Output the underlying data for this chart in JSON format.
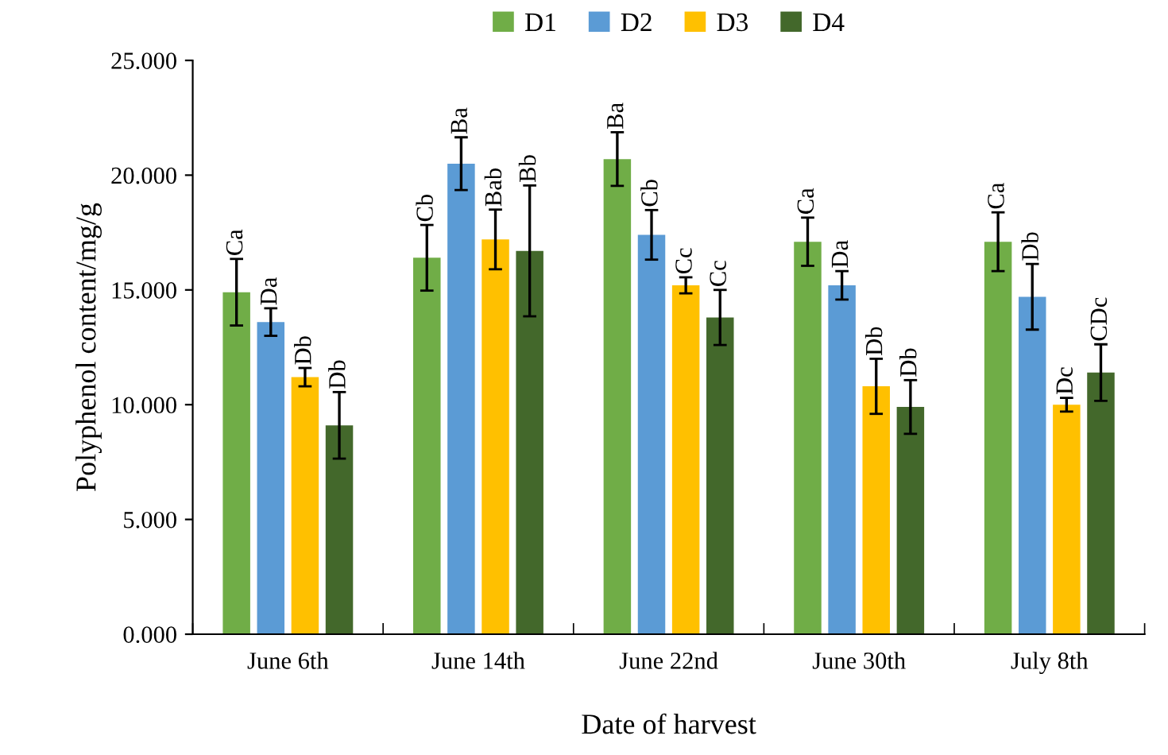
{
  "chart_data": {
    "type": "bar",
    "xlabel": "Date of harvest",
    "ylabel": "Polyphenol content/mg/g",
    "categories": [
      "June 6th",
      "June 14th",
      "June 22nd",
      "June 30th",
      "July 8th"
    ],
    "series": [
      {
        "name": "D1",
        "color": "#70ad47",
        "values": [
          14.9,
          16.4,
          20.7,
          17.1,
          17.1
        ],
        "errors": [
          1.45,
          1.43,
          1.17,
          1.05,
          1.28
        ],
        "value_labels": [
          "Ca",
          "Cb",
          "Ba",
          "Ca",
          "Ca"
        ]
      },
      {
        "name": "D2",
        "color": "#5b9bd5",
        "values": [
          13.6,
          20.5,
          17.4,
          15.2,
          14.7
        ],
        "errors": [
          0.6,
          1.15,
          1.08,
          0.62,
          1.43
        ],
        "value_labels": [
          "Da",
          "Ba",
          "Cb",
          "Da",
          "Db"
        ]
      },
      {
        "name": "D3",
        "color": "#ffc000",
        "values": [
          11.2,
          17.2,
          15.2,
          10.8,
          10.0
        ],
        "errors": [
          0.4,
          1.3,
          0.35,
          1.2,
          0.3
        ],
        "value_labels": [
          "Db",
          "Bab",
          "Cc",
          "Db",
          "Dc"
        ]
      },
      {
        "name": "D4",
        "color": "#43682b",
        "values": [
          9.1,
          16.7,
          13.8,
          9.9,
          11.4
        ],
        "errors": [
          1.45,
          2.85,
          1.2,
          1.17,
          1.23
        ],
        "value_labels": [
          "Db",
          "Bb",
          "Cc",
          "Db",
          "CDc"
        ]
      }
    ],
    "ylim": [
      0,
      25
    ],
    "yticks": [
      {
        "value": 0,
        "label": "0.000"
      },
      {
        "value": 5,
        "label": "5.000"
      },
      {
        "value": 10,
        "label": "10.000"
      },
      {
        "value": 15,
        "label": "15.000"
      },
      {
        "value": 20,
        "label": "20.000"
      },
      {
        "value": 25,
        "label": "25.000"
      }
    ],
    "grid": false,
    "legend": "top"
  }
}
